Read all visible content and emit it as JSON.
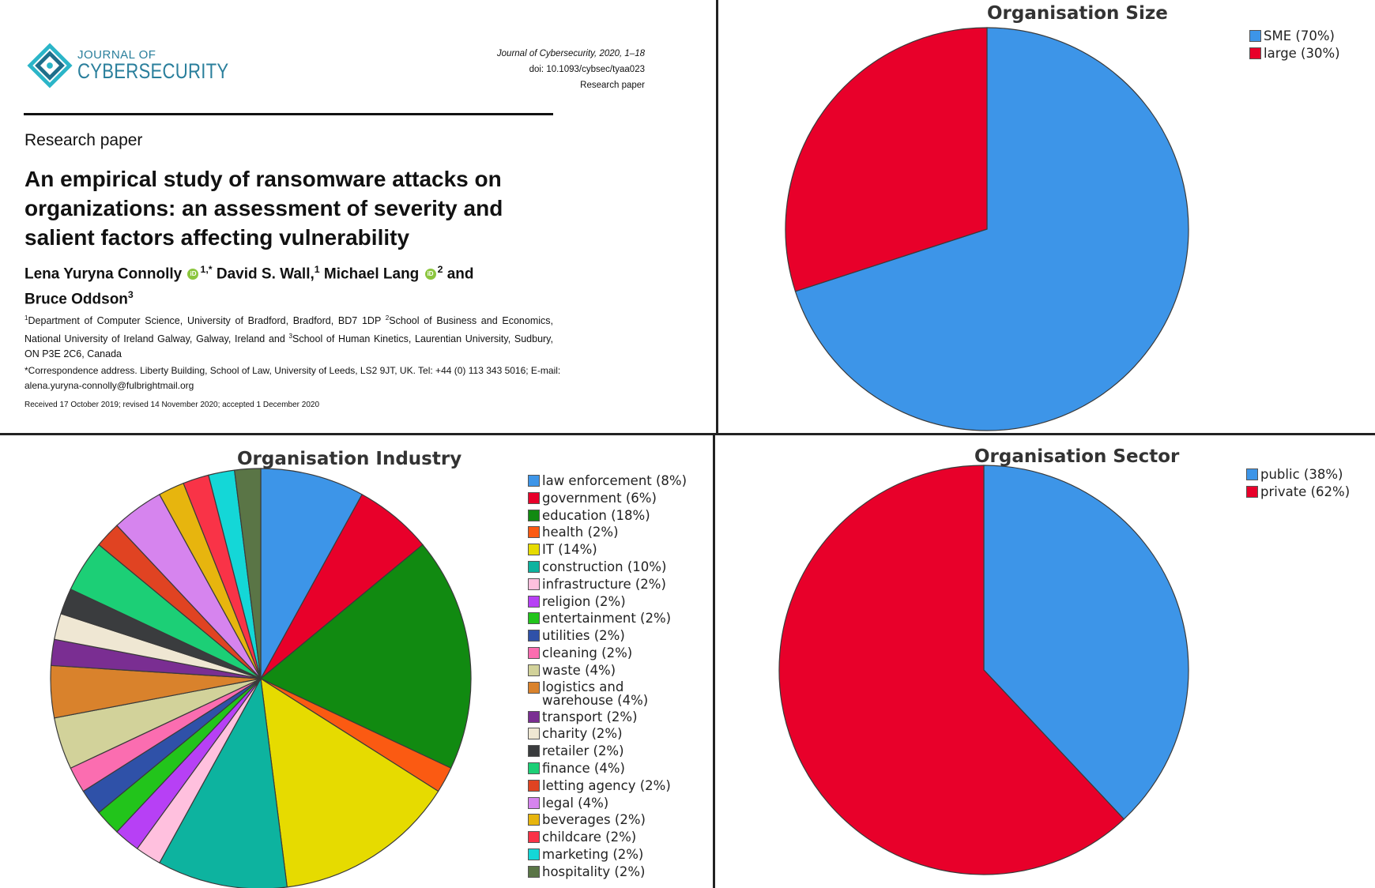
{
  "paper": {
    "logo_line1": "JOURNAL OF",
    "logo_line2": "CYBERSECURITY",
    "journal_ref": "Journal of Cybersecurity, 2020, 1–18",
    "doi": "doi: 10.1093/cybsec/tyaa023",
    "type_right": "Research paper",
    "type_left": "Research paper",
    "title": "An empirical study of ransomware attacks on organizations: an assessment of severity and salient factors affecting vulnerability",
    "author1": "Lena Yuryna Connolly",
    "author1_sup": "1,*",
    "author2": "David S. Wall,",
    "author2_sup": "1",
    "author3": "Michael Lang",
    "author3_sup": "2",
    "and": "and",
    "author4": "Bruce Oddson",
    "author4_sup": "3",
    "affil1_sup": "1",
    "affil1": "Department of Computer Science, University of Bradford, Bradford, BD7 1DP",
    "affil2_sup": "2",
    "affil2": "School of Business and Economics, National University of Ireland Galway, Galway, Ireland and",
    "affil3_sup": "3",
    "affil3": "School of Human Kinetics, Laurentian University, Sudbury, ON P3E 2C6, Canada",
    "correspondence": "*Correspondence address. Liberty Building, School of Law, University of Leeds, LS2 9JT, UK. Tel: +44 (0) 113 343 5016; E-mail: alena.yuryna-connolly@fulbrightmail.org",
    "received": "Received 17 October 2019; revised 14 November 2020; accepted 1 December 2020",
    "orcid_label": "iD"
  },
  "chart_data": [
    {
      "type": "pie",
      "title": "Organisation Size",
      "slices": [
        {
          "label": "SME (70%)",
          "value": 70,
          "color": "#3d95e8"
        },
        {
          "label": "large (30%)",
          "value": 30,
          "color": "#e8002a"
        }
      ]
    },
    {
      "type": "pie",
      "title": "Organisation Industry",
      "slices": [
        {
          "label": "law enforcement (8%)",
          "value": 8,
          "color": "#3d95e8"
        },
        {
          "label": "government (6%)",
          "value": 6,
          "color": "#e8002a"
        },
        {
          "label": "education (18%)",
          "value": 18,
          "color": "#118a11"
        },
        {
          "label": "health (2%)",
          "value": 2,
          "color": "#fb5a12"
        },
        {
          "label": "IT (14%)",
          "value": 14,
          "color": "#e6db00"
        },
        {
          "label": "construction (10%)",
          "value": 10,
          "color": "#0db39f"
        },
        {
          "label": "infrastructure (2%)",
          "value": 2,
          "color": "#ffc0de"
        },
        {
          "label": "religion (2%)",
          "value": 2,
          "color": "#b740f5"
        },
        {
          "label": "entertainment (2%)",
          "value": 2,
          "color": "#22c41b"
        },
        {
          "label": "utilities (2%)",
          "value": 2,
          "color": "#2f51a8"
        },
        {
          "label": "cleaning (2%)",
          "value": 2,
          "color": "#fb6db0"
        },
        {
          "label": "waste (4%)",
          "value": 4,
          "color": "#d2d29a"
        },
        {
          "label": "logistics and warehouse (4%)",
          "value": 4,
          "color": "#d9822c"
        },
        {
          "label": "transport (2%)",
          "value": 2,
          "color": "#7a2e92"
        },
        {
          "label": "charity (2%)",
          "value": 2,
          "color": "#efe7d3"
        },
        {
          "label": "retailer (2%)",
          "value": 2,
          "color": "#3a3c3e"
        },
        {
          "label": "finance (4%)",
          "value": 4,
          "color": "#1ccf76"
        },
        {
          "label": "letting agency (2%)",
          "value": 2,
          "color": "#e04322"
        },
        {
          "label": "legal (4%)",
          "value": 4,
          "color": "#d684ee"
        },
        {
          "label": "beverages (2%)",
          "value": 2,
          "color": "#e7b50e"
        },
        {
          "label": "childcare (2%)",
          "value": 2,
          "color": "#f93347"
        },
        {
          "label": "marketing (2%)",
          "value": 2,
          "color": "#14d7d7"
        },
        {
          "label": "hospitality (2%)",
          "value": 2,
          "color": "#5a7546"
        }
      ]
    },
    {
      "type": "pie",
      "title": "Organisation Sector",
      "slices": [
        {
          "label": "public (38%)",
          "value": 38,
          "color": "#3d95e8"
        },
        {
          "label": "private (62%)",
          "value": 62,
          "color": "#e8002a"
        }
      ]
    }
  ]
}
